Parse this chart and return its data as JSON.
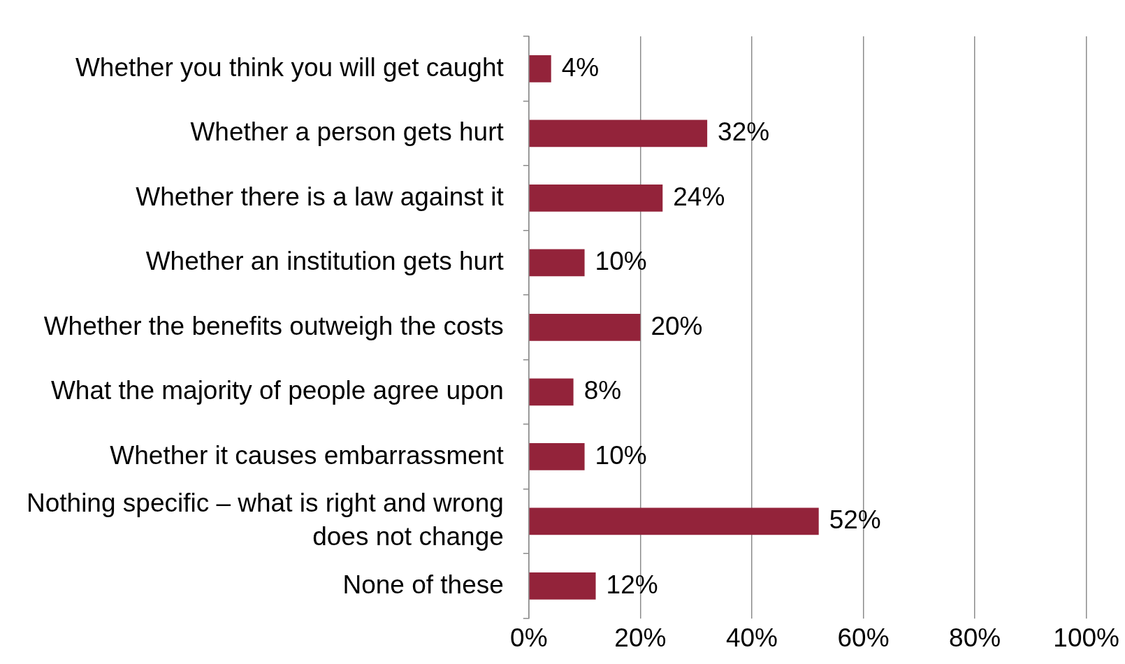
{
  "chart_data": {
    "type": "bar",
    "orientation": "horizontal",
    "categories": [
      "Whether you think you will get caught",
      "Whether a person gets hurt",
      "Whether there is a law against it",
      "Whether an institution gets hurt",
      "Whether the benefits outweigh the costs",
      "What the majority of people agree upon",
      "Whether it causes embarrassment",
      "Nothing specific – what is right and wrong does not change",
      "None of these"
    ],
    "values": [
      4,
      32,
      24,
      10,
      20,
      8,
      10,
      52,
      12
    ],
    "value_labels": [
      "4%",
      "32%",
      "24%",
      "10%",
      "20%",
      "8%",
      "10%",
      "52%",
      "12%"
    ],
    "color": "#93233a",
    "xlim": [
      0,
      100
    ],
    "xticks": [
      {
        "value": 0,
        "label": "0%"
      },
      {
        "value": 20,
        "label": "20%"
      },
      {
        "value": 40,
        "label": "40%"
      },
      {
        "value": 60,
        "label": "60%"
      },
      {
        "value": 80,
        "label": "80%"
      },
      {
        "value": 100,
        "label": "100%"
      }
    ],
    "grid": "x",
    "legend": false
  }
}
